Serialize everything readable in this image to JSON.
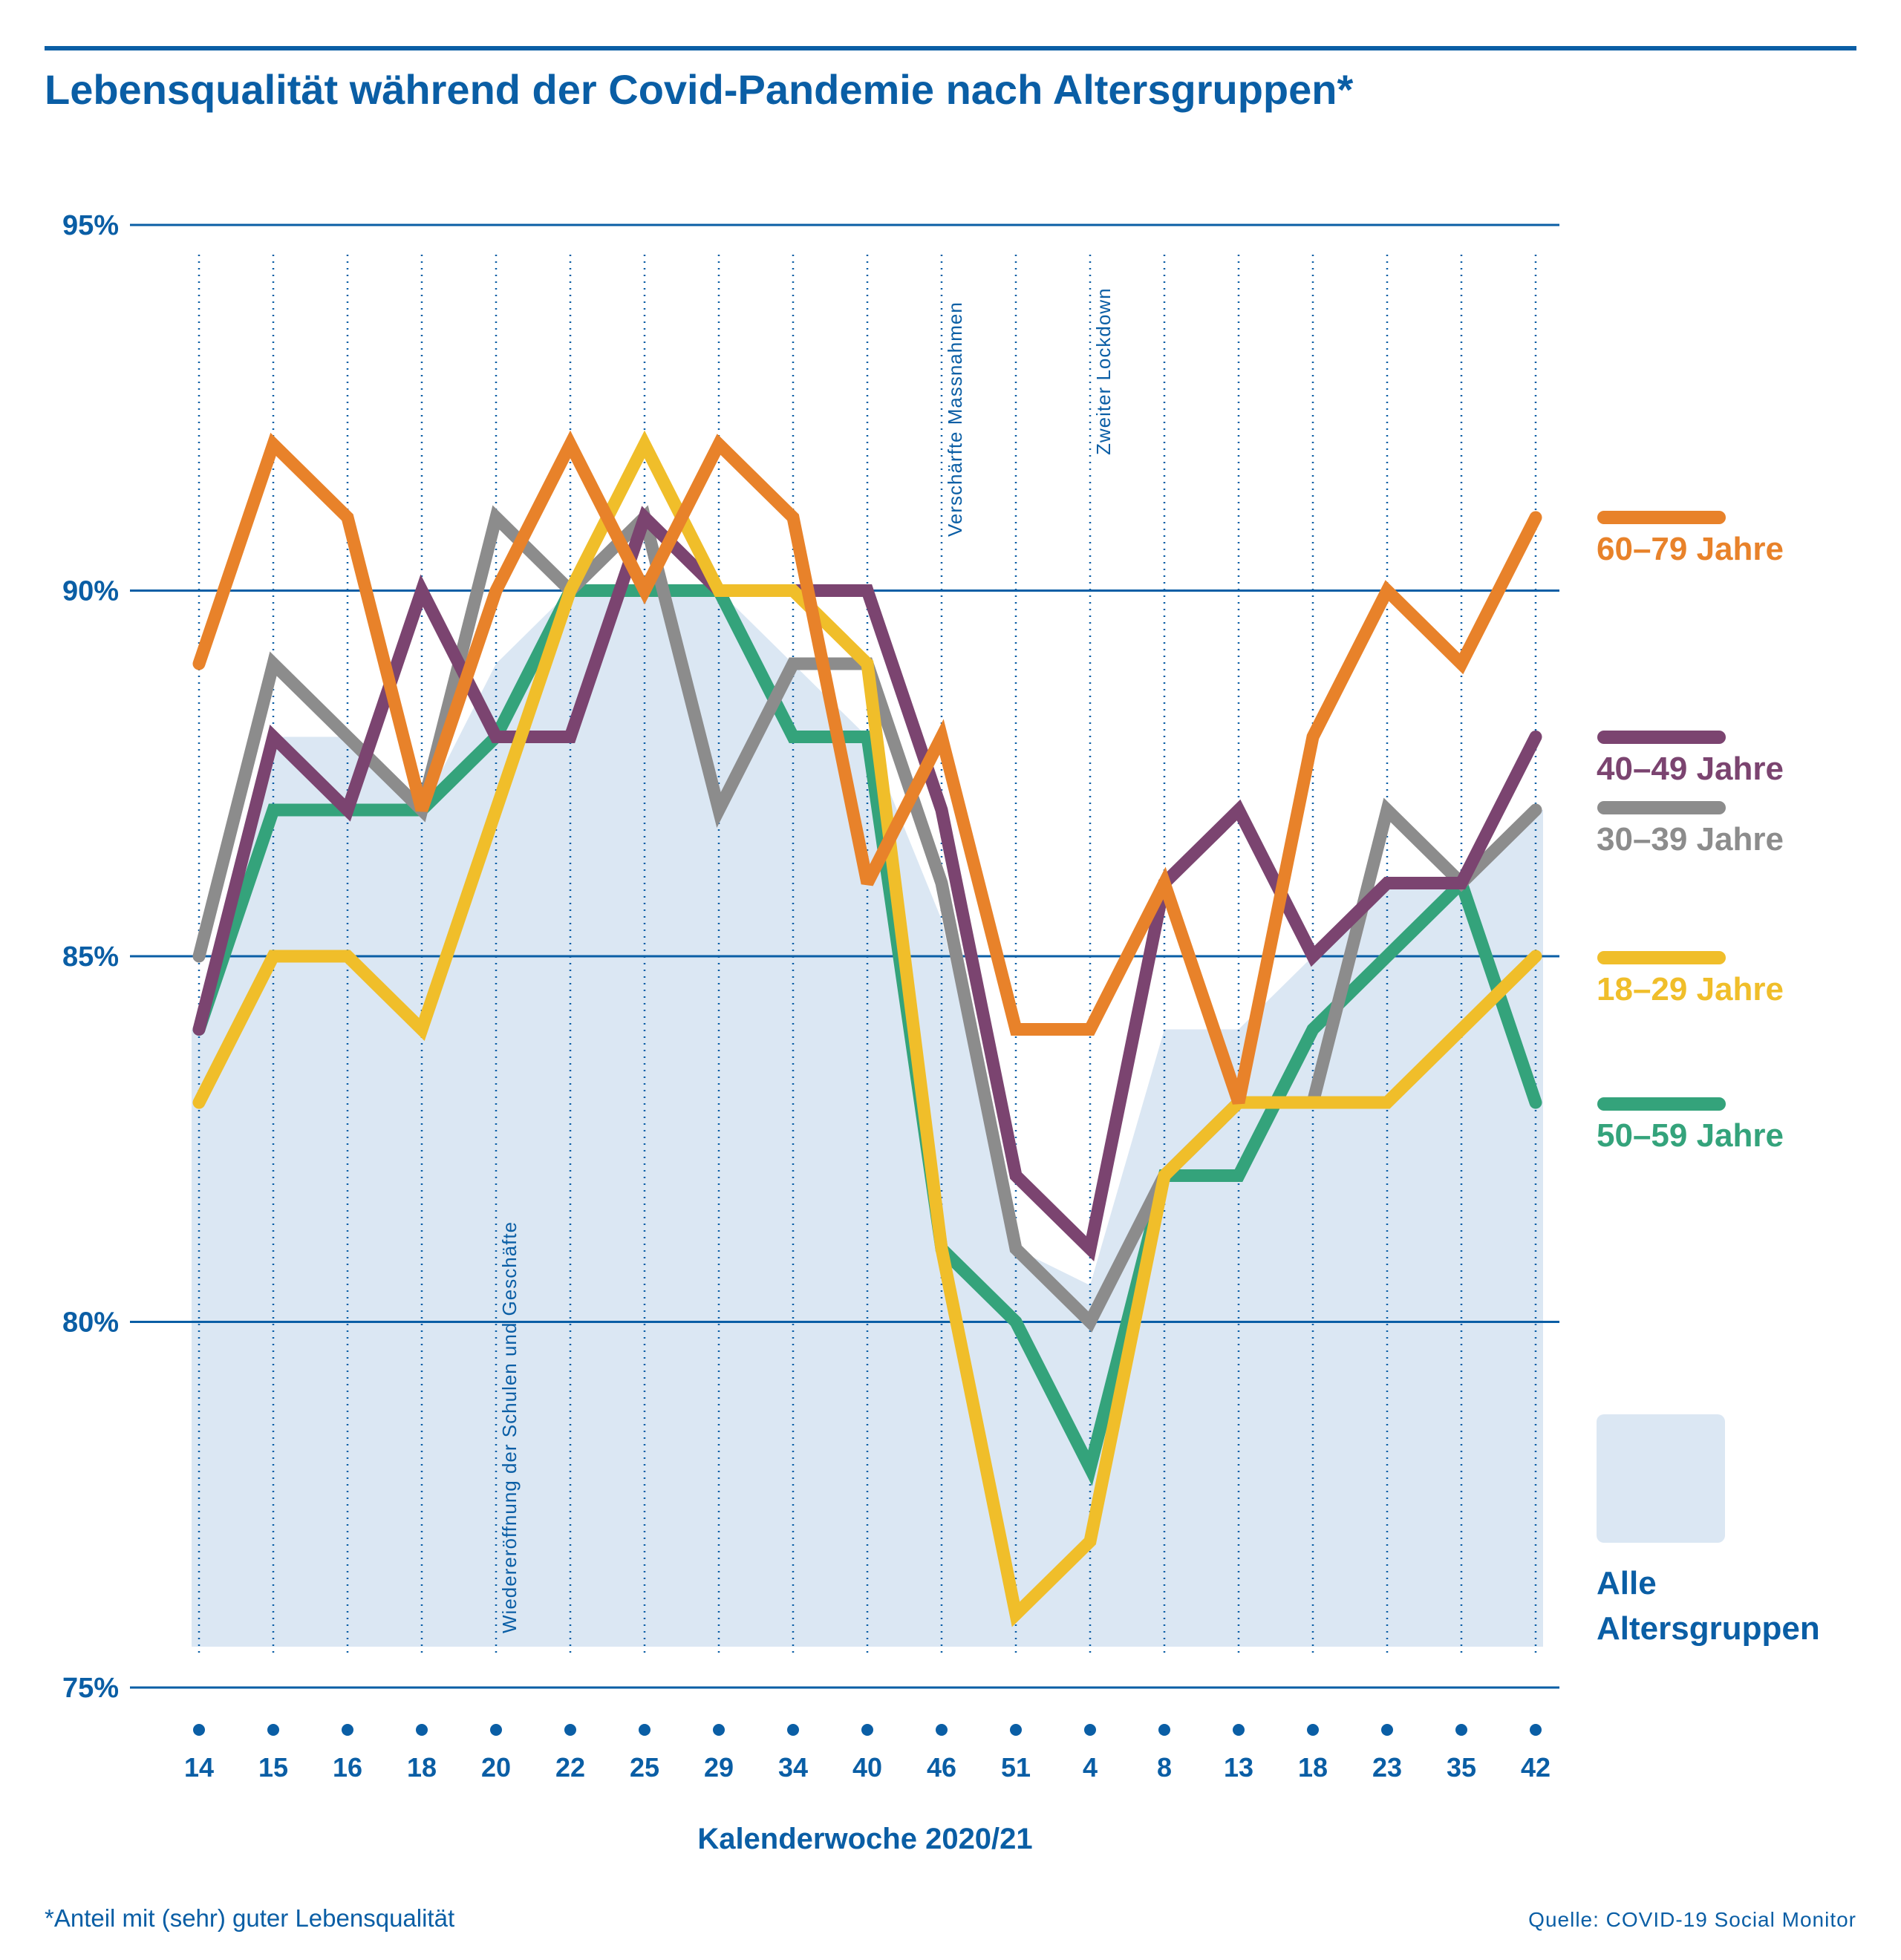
{
  "title": "Lebensqualität während der Covid-Pandemie nach Altersgruppen*",
  "footnote": "*Anteil mit (sehr) guter Lebensqualität",
  "source": "Quelle: COVID-19 Social Monitor",
  "chart_data": {
    "type": "line",
    "title": "Lebensqualität während der Covid-Pandemie nach Altersgruppen*",
    "xlabel": "Kalenderwoche 2020/21",
    "ylabel": "",
    "categories": [
      "14",
      "15",
      "16",
      "18",
      "20",
      "22",
      "25",
      "29",
      "34",
      "40",
      "46",
      "51",
      "4",
      "8",
      "13",
      "18",
      "23",
      "35",
      "42"
    ],
    "ylim": [
      75,
      95
    ],
    "yticks": [
      {
        "value": 75,
        "label": "75%"
      },
      {
        "value": 80,
        "label": "80%"
      },
      {
        "value": 85,
        "label": "85%"
      },
      {
        "value": 90,
        "label": "90%"
      },
      {
        "value": 95,
        "label": "95%"
      }
    ],
    "grid": "horizontal solid at y ticks; vertical dotted at each category",
    "legend_position": "right",
    "area": {
      "name": "Alle Altersgruppen",
      "color": "#dbe7f3",
      "values": [
        84,
        88,
        88,
        87,
        89,
        90,
        90,
        90,
        89,
        88,
        85.5,
        81,
        80.5,
        84,
        84,
        85,
        86,
        86,
        87
      ]
    },
    "series": [
      {
        "name": "60–79 Jahre",
        "color": "#e8822a",
        "values": [
          89,
          92,
          91,
          87,
          90,
          92,
          90,
          92,
          91,
          86,
          88,
          84,
          84,
          86,
          83,
          88,
          90,
          89,
          91
        ]
      },
      {
        "name": "40–49 Jahre",
        "color": "#7b4470",
        "values": [
          84,
          88,
          87,
          90,
          88,
          88,
          91,
          90,
          90,
          90,
          87,
          82,
          81,
          86,
          87,
          85,
          86,
          86,
          88
        ]
      },
      {
        "name": "30–39 Jahre",
        "color": "#8c8c8c",
        "values": [
          85,
          89,
          88,
          87,
          91,
          90,
          91,
          87,
          89,
          89,
          86,
          81,
          80,
          82,
          83,
          83,
          87,
          86,
          87
        ]
      },
      {
        "name": "18–29 Jahre",
        "color": "#f0be2a",
        "values": [
          83,
          85,
          85,
          84,
          87,
          90,
          92,
          90,
          90,
          89,
          81,
          76,
          77,
          82,
          83,
          83,
          83,
          84,
          85
        ]
      },
      {
        "name": "50–59 Jahre",
        "color": "#34a37b",
        "values": [
          84,
          87,
          87,
          87,
          88,
          90,
          90,
          90,
          88,
          88,
          81,
          80,
          78,
          82,
          82,
          84,
          85,
          86,
          83
        ]
      }
    ],
    "annotations": [
      {
        "index": 4,
        "text": "Wiedereröffnung der Schulen und Geschäfte"
      },
      {
        "index": 10,
        "text": "Verschärfte Massnahmen"
      },
      {
        "index": 12,
        "text": "Zweiter Lockdown"
      }
    ]
  }
}
